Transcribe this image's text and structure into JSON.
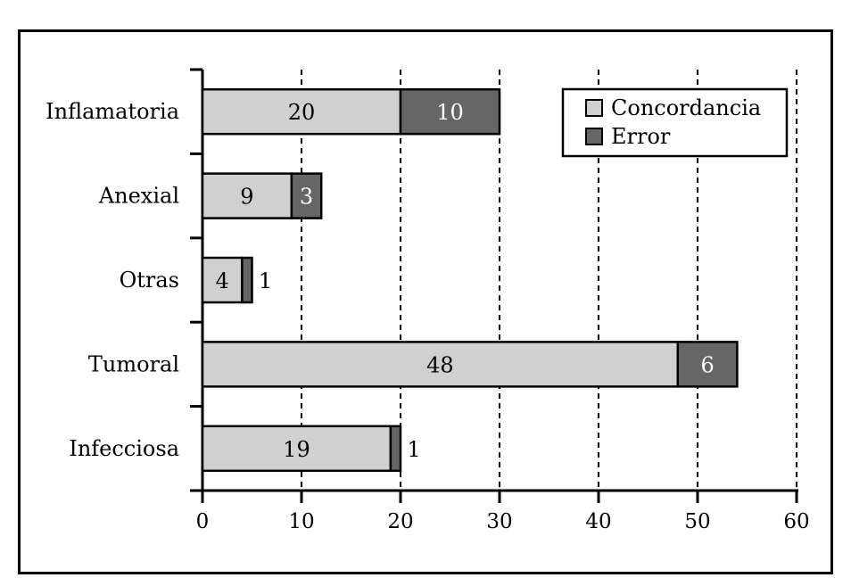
{
  "chart_data": {
    "type": "bar",
    "orientation": "horizontal",
    "stacked": true,
    "categories": [
      "Inflamatoria",
      "Anexial",
      "Otras",
      "Tumoral",
      "Infecciosa"
    ],
    "series": [
      {
        "name": "Concordancia",
        "values": [
          20,
          9,
          4,
          48,
          19
        ],
        "color": "#d0d0d0"
      },
      {
        "name": "Error",
        "values": [
          10,
          3,
          1,
          6,
          1
        ],
        "color": "#666666"
      }
    ],
    "xlim": [
      0,
      60
    ],
    "xticks": [
      "0",
      "10",
      "20",
      "30",
      "40",
      "50",
      "60"
    ],
    "grid": "vertical dashed",
    "legend_position": "top-right",
    "title": "",
    "xlabel": "",
    "ylabel": ""
  }
}
